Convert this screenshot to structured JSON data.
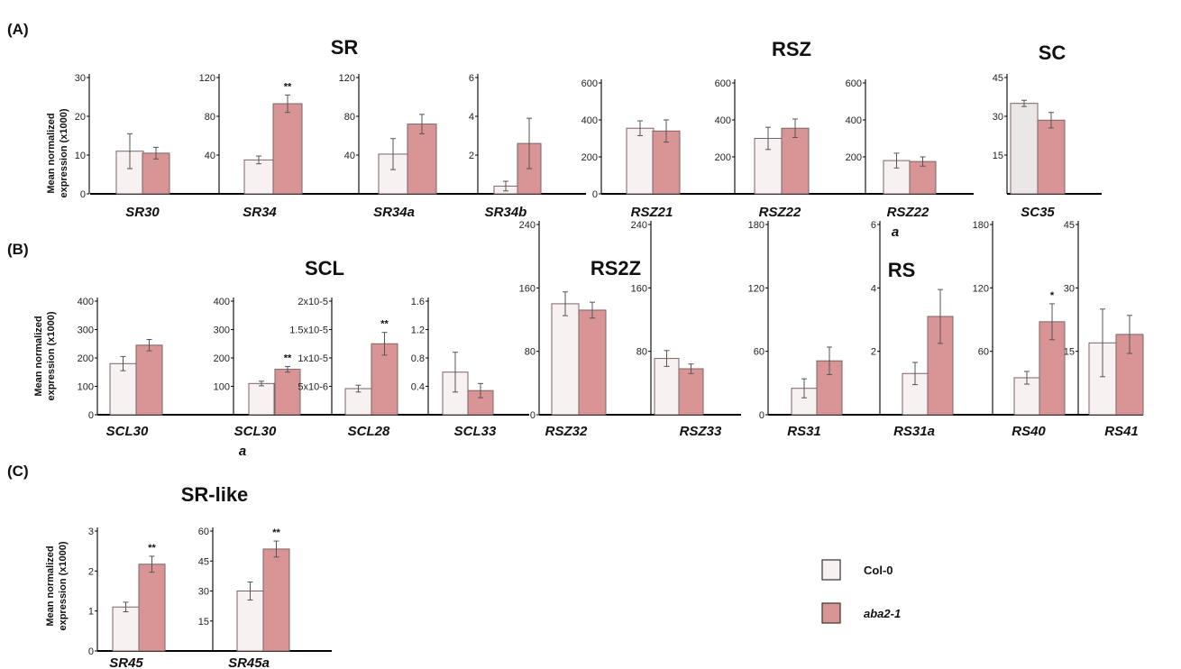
{
  "colors": {
    "control_fill": "#f7f1f1",
    "control_fill_alt": "#ece7e7",
    "treated_fill": "#d99595",
    "bar_stroke": "#7b6363",
    "axis": "#000000",
    "error": "#555555"
  },
  "panels": [
    {
      "label": "(A)",
      "ylabel_line1": "Mean normalized",
      "ylabel_line2": "expression (x1000)"
    },
    {
      "label": "(B)",
      "ylabel_line1": "Mean normalized",
      "ylabel_line2": "expression (x1000)"
    },
    {
      "label": "(C)",
      "ylabel_line1": "Mean normalized",
      "ylabel_line2": "expression (x1000)"
    }
  ],
  "group_titles": [
    "SR",
    "RSZ",
    "SC",
    "SCL",
    "RS2Z",
    "RS",
    "SR-like"
  ],
  "legend": [
    {
      "label": "Col-0",
      "series": "control"
    },
    {
      "label": "aba2-1",
      "series": "treated"
    }
  ],
  "chart_data": [
    {
      "type": "bar",
      "gene": "SR30",
      "ylim": [
        0,
        30
      ],
      "ticks": [
        "0",
        "10",
        "20",
        "30"
      ],
      "series": [
        {
          "name": "Col-0",
          "value": 11,
          "error": 4.5
        },
        {
          "name": "aba2-1",
          "value": 10.5,
          "error": 1.5
        }
      ]
    },
    {
      "type": "bar",
      "gene": "SR34",
      "ylim": [
        0,
        120
      ],
      "ticks": [
        "40",
        "80",
        "120"
      ],
      "significance": "**",
      "series": [
        {
          "name": "Col-0",
          "value": 35,
          "error": 4
        },
        {
          "name": "aba2-1",
          "value": 93,
          "error": 9
        }
      ]
    },
    {
      "type": "bar",
      "gene": "SR34a",
      "ylim": [
        0,
        120
      ],
      "ticks": [
        "40",
        "80",
        "120"
      ],
      "series": [
        {
          "name": "Col-0",
          "value": 41,
          "error": 16
        },
        {
          "name": "aba2-1",
          "value": 72,
          "error": 10
        }
      ]
    },
    {
      "type": "bar",
      "gene": "SR34b",
      "ylim": [
        0,
        6
      ],
      "ticks": [
        "2",
        "4",
        "6"
      ],
      "series": [
        {
          "name": "Col-0",
          "value": 0.4,
          "error": 0.25
        },
        {
          "name": "aba2-1",
          "value": 2.6,
          "error": 1.3
        }
      ]
    },
    {
      "type": "bar",
      "gene": "RSZ21",
      "ylim": [
        0,
        600
      ],
      "ticks": [
        "0",
        "200",
        "400",
        "600"
      ],
      "series": [
        {
          "name": "Col-0",
          "value": 355,
          "error": 40
        },
        {
          "name": "aba2-1",
          "value": 340,
          "error": 60
        }
      ]
    },
    {
      "type": "bar",
      "gene": "RSZ22",
      "ylim": [
        0,
        600
      ],
      "ticks": [
        "200",
        "400",
        "600"
      ],
      "series": [
        {
          "name": "Col-0",
          "value": 300,
          "error": 60
        },
        {
          "name": "aba2-1",
          "value": 355,
          "error": 50
        }
      ]
    },
    {
      "type": "bar",
      "gene": "RSZ22a",
      "gene_line1": "RSZ22",
      "gene_line2": "a",
      "ylim": [
        0,
        600
      ],
      "ticks": [
        "200",
        "400",
        "600"
      ],
      "series": [
        {
          "name": "Col-0",
          "value": 180,
          "error": 40
        },
        {
          "name": "aba2-1",
          "value": 175,
          "error": 25
        }
      ]
    },
    {
      "type": "bar",
      "gene": "SC35",
      "ylim": [
        0,
        45
      ],
      "ticks": [
        "15",
        "30",
        "45"
      ],
      "series": [
        {
          "name": "Col-0",
          "value": 35,
          "error": 1.2
        },
        {
          "name": "aba2-1",
          "value": 28.5,
          "error": 3
        }
      ]
    },
    {
      "type": "bar",
      "gene": "SCL30",
      "ylim": [
        0,
        400
      ],
      "ticks": [
        "0",
        "100",
        "200",
        "300",
        "400"
      ],
      "series": [
        {
          "name": "Col-0",
          "value": 180,
          "error": 25
        },
        {
          "name": "aba2-1",
          "value": 245,
          "error": 20
        }
      ]
    },
    {
      "type": "bar",
      "gene": "SCL30a",
      "gene_line1": "SCL30",
      "gene_line2": "a",
      "ylim": [
        0,
        400
      ],
      "ticks": [
        "100",
        "200",
        "300",
        "400"
      ],
      "significance": "**",
      "series": [
        {
          "name": "Col-0",
          "value": 110,
          "error": 8
        },
        {
          "name": "aba2-1",
          "value": 160,
          "error": 10
        }
      ]
    },
    {
      "type": "bar",
      "gene": "SCL28",
      "ylim": [
        0,
        2e-05
      ],
      "ticks": [
        "5x10-6",
        "1x10-5",
        "1.5x10-5",
        "2x10-5"
      ],
      "significance": "**",
      "series": [
        {
          "name": "Col-0",
          "value": 4.6e-06,
          "error": 6e-07
        },
        {
          "name": "aba2-1",
          "value": 1.25e-05,
          "error": 2e-06
        }
      ]
    },
    {
      "type": "bar",
      "gene": "SCL33",
      "ylim": [
        0,
        1.6
      ],
      "ticks": [
        "0.4",
        "0.8",
        "1.2",
        "1.6"
      ],
      "series": [
        {
          "name": "Col-0",
          "value": 0.6,
          "error": 0.28
        },
        {
          "name": "aba2-1",
          "value": 0.34,
          "error": 0.1
        }
      ]
    },
    {
      "type": "bar",
      "gene": "RSZ32",
      "ylim": [
        0,
        240
      ],
      "ticks": [
        "0",
        "80",
        "160",
        "240"
      ],
      "series": [
        {
          "name": "Col-0",
          "value": 140,
          "error": 15
        },
        {
          "name": "aba2-1",
          "value": 132,
          "error": 10
        }
      ]
    },
    {
      "type": "bar",
      "gene": "RSZ33",
      "ylim": [
        0,
        240
      ],
      "ticks": [
        "80",
        "160",
        "240"
      ],
      "series": [
        {
          "name": "Col-0",
          "value": 71,
          "error": 10
        },
        {
          "name": "aba2-1",
          "value": 58,
          "error": 6
        }
      ]
    },
    {
      "type": "bar",
      "gene": "RS31",
      "ylim": [
        0,
        180
      ],
      "ticks": [
        "0",
        "60",
        "120",
        "180"
      ],
      "series": [
        {
          "name": "Col-0",
          "value": 25,
          "error": 9
        },
        {
          "name": "aba2-1",
          "value": 51,
          "error": 13
        }
      ]
    },
    {
      "type": "bar",
      "gene": "RS31a",
      "ylim": [
        0,
        6
      ],
      "ticks": [
        "2",
        "4",
        "6"
      ],
      "series": [
        {
          "name": "Col-0",
          "value": 1.3,
          "error": 0.35
        },
        {
          "name": "aba2-1",
          "value": 3.1,
          "error": 0.85
        }
      ]
    },
    {
      "type": "bar",
      "gene": "RS40",
      "ylim": [
        0,
        180
      ],
      "ticks": [
        "60",
        "120",
        "180"
      ],
      "significance": "*",
      "series": [
        {
          "name": "Col-0",
          "value": 35,
          "error": 6
        },
        {
          "name": "aba2-1",
          "value": 88,
          "error": 17
        }
      ]
    },
    {
      "type": "bar",
      "gene": "RS41",
      "ylim": [
        0,
        45
      ],
      "ticks": [
        "15",
        "30",
        "45"
      ],
      "series": [
        {
          "name": "Col-0",
          "value": 17,
          "error": 8
        },
        {
          "name": "aba2-1",
          "value": 19,
          "error": 4.5
        }
      ]
    },
    {
      "type": "bar",
      "gene": "SR45",
      "ylim": [
        0,
        3
      ],
      "ticks": [
        "0",
        "1",
        "2",
        "3"
      ],
      "significance": "**",
      "series": [
        {
          "name": "Col-0",
          "value": 1.1,
          "error": 0.12
        },
        {
          "name": "aba2-1",
          "value": 2.17,
          "error": 0.2
        }
      ]
    },
    {
      "type": "bar",
      "gene": "SR45a",
      "ylim": [
        0,
        60
      ],
      "ticks": [
        "15",
        "30",
        "45",
        "60"
      ],
      "significance": "**",
      "series": [
        {
          "name": "Col-0",
          "value": 30,
          "error": 4.5
        },
        {
          "name": "aba2-1",
          "value": 51,
          "error": 4
        }
      ]
    }
  ]
}
